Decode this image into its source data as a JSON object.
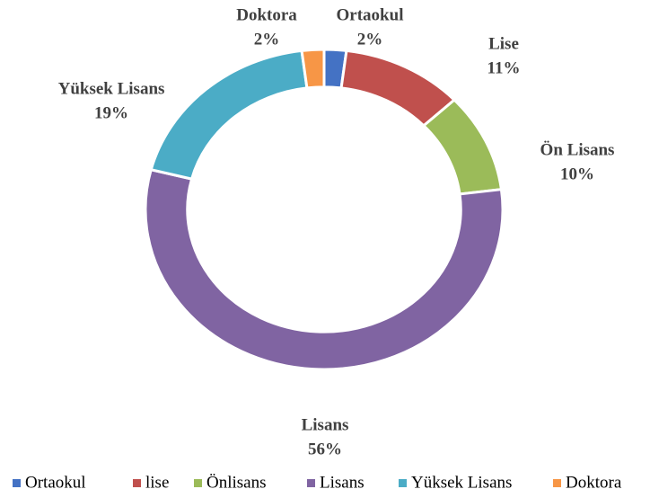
{
  "chart_data": {
    "type": "donut",
    "categories": [
      "Ortaokul",
      "lise",
      "Önlisans",
      "Lisans",
      "Yüksek Lisans",
      "Doktora"
    ],
    "data_labels": [
      "Ortaokul",
      "Lise",
      "Ön Lisans",
      "Lisans",
      "Yüksek Lisans",
      "Doktora"
    ],
    "values": [
      2,
      11,
      10,
      56,
      19,
      2
    ],
    "value_labels": [
      "2%",
      "11%",
      "10%",
      "56%",
      "19%",
      "2%"
    ],
    "colors": [
      "#4472c4",
      "#c0504d",
      "#9bbb59",
      "#8064a2",
      "#4bacc6",
      "#f79646"
    ],
    "legend": "bottom"
  }
}
